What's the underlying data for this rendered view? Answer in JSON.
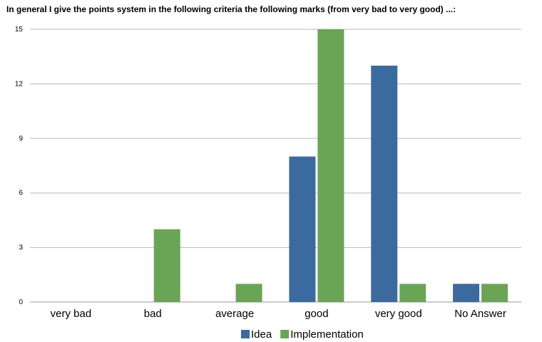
{
  "chart_data": {
    "type": "bar",
    "title": "In general I give the points system in the following criteria the following marks (from very bad to very good) ...:",
    "xlabel": "",
    "ylabel": "",
    "categories": [
      "very bad",
      "bad",
      "average",
      "good",
      "very good",
      "No Answer"
    ],
    "series": [
      {
        "name": "Idea",
        "color": "#3b6a9e",
        "values": [
          0,
          0,
          0,
          8,
          13,
          1
        ]
      },
      {
        "name": "Implementation",
        "color": "#6aa556",
        "values": [
          0,
          4,
          1,
          15,
          1,
          1
        ]
      }
    ],
    "ylim": [
      0,
      15
    ],
    "yticks": [
      0,
      3,
      6,
      9,
      12,
      15
    ],
    "grid": true,
    "legend": "bottom-center"
  }
}
